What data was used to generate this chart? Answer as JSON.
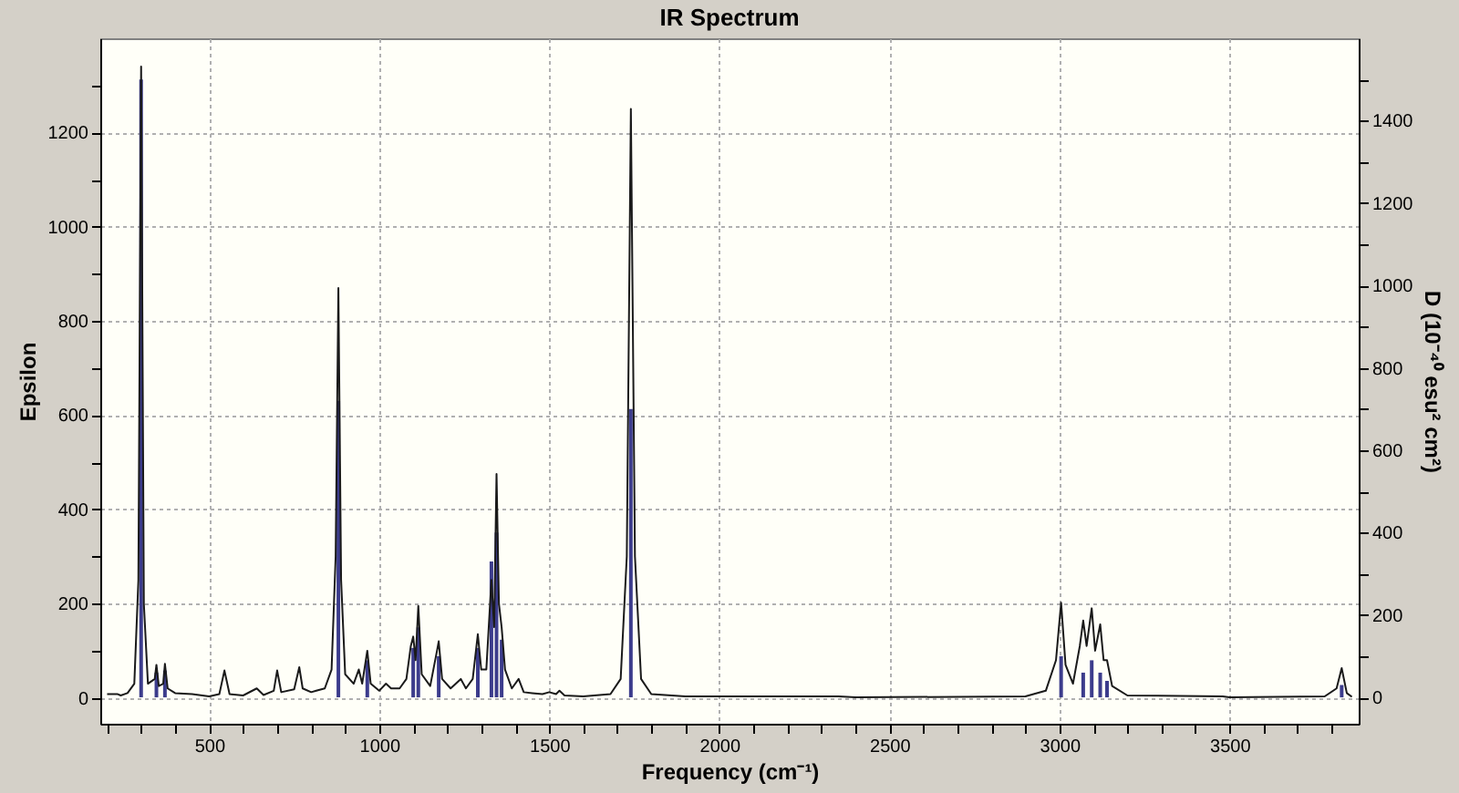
{
  "chart_data": {
    "type": "line",
    "title": "IR Spectrum",
    "xlabel": "Frequency (cm⁻¹)",
    "ylabel": "Epsilon",
    "y2label": "D (10⁻⁴⁰ esu² cm²)",
    "xlim": [
      180,
      3880
    ],
    "ylim": [
      -55,
      1400
    ],
    "y2lim": [
      -64,
      1600
    ],
    "xticks": [
      {
        "value": 200,
        "label": null
      },
      {
        "value": 300,
        "label": null
      },
      {
        "value": 400,
        "label": null
      },
      500,
      {
        "value": 600,
        "label": null
      },
      {
        "value": 700,
        "label": null
      },
      {
        "value": 800,
        "label": null
      },
      {
        "value": 900,
        "label": null
      },
      1000,
      {
        "value": 1100,
        "label": null
      },
      {
        "value": 1200,
        "label": null
      },
      {
        "value": 1300,
        "label": null
      },
      {
        "value": 1400,
        "label": null
      },
      1500,
      {
        "value": 1600,
        "label": null
      },
      {
        "value": 1700,
        "label": null
      },
      {
        "value": 1800,
        "label": null
      },
      {
        "value": 1900,
        "label": null
      },
      2000,
      {
        "value": 2100,
        "label": null
      },
      {
        "value": 2200,
        "label": null
      },
      {
        "value": 2300,
        "label": null
      },
      {
        "value": 2400,
        "label": null
      },
      2500,
      {
        "value": 2600,
        "label": null
      },
      {
        "value": 2700,
        "label": null
      },
      {
        "value": 2800,
        "label": null
      },
      {
        "value": 2900,
        "label": null
      },
      3000,
      {
        "value": 3100,
        "label": null
      },
      {
        "value": 3200,
        "label": null
      },
      {
        "value": 3300,
        "label": null
      },
      {
        "value": 3400,
        "label": null
      },
      3500,
      {
        "value": 3600,
        "label": null
      },
      {
        "value": 3700,
        "label": null
      },
      {
        "value": 3800,
        "label": null
      }
    ],
    "yticks": [
      0,
      {
        "value": 100,
        "label": null
      },
      200,
      {
        "value": 300,
        "label": null
      },
      400,
      {
        "value": 500,
        "label": null
      },
      600,
      {
        "value": 700,
        "label": null
      },
      800,
      {
        "value": 900,
        "label": null
      },
      1000,
      {
        "value": 1100,
        "label": null
      },
      1200,
      {
        "value": 1300,
        "label": null
      }
    ],
    "y2ticks": [
      0,
      {
        "value": 100,
        "label": null
      },
      200,
      {
        "value": 300,
        "label": null
      },
      400,
      {
        "value": 500,
        "label": null
      },
      600,
      {
        "value": 700,
        "label": null
      },
      800,
      {
        "value": 900,
        "label": null
      },
      1000,
      {
        "value": 1100,
        "label": null
      },
      1200,
      {
        "value": 1300,
        "label": null
      },
      1400,
      {
        "value": 1500,
        "label": null
      }
    ],
    "grid": true,
    "marker": "none",
    "line_style": "solid",
    "series": [
      {
        "color": "#1a1a1a",
        "x": [
          200,
          230,
          240,
          260,
          280,
          292,
          300,
          308,
          320,
          340,
          345,
          352,
          365,
          370,
          378,
          400,
          450,
          500,
          530,
          545,
          560,
          600,
          640,
          660,
          690,
          700,
          712,
          750,
          765,
          775,
          800,
          815,
          840,
          860,
          872,
          880,
          888,
          900,
          925,
          940,
          950,
          965,
          975,
          1000,
          1020,
          1035,
          1060,
          1080,
          1093,
          1100,
          1107,
          1115,
          1125,
          1150,
          1170,
          1175,
          1185,
          1210,
          1240,
          1255,
          1275,
          1290,
          1300,
          1315,
          1330,
          1338,
          1345,
          1352,
          1360,
          1370,
          1390,
          1410,
          1425,
          1450,
          1480,
          1500,
          1520,
          1530,
          1545,
          1600,
          1680,
          1710,
          1728,
          1740,
          1752,
          1770,
          1800,
          1900,
          2000,
          2350,
          2400,
          2900,
          2960,
          2990,
          3005,
          3018,
          3040,
          3060,
          3070,
          3080,
          3095,
          3105,
          3120,
          3130,
          3140,
          3155,
          3200,
          3480,
          3500,
          3780,
          3815,
          3830,
          3845,
          3860
        ],
        "values": [
          8,
          8,
          5,
          10,
          30,
          250,
          1340,
          200,
          30,
          40,
          70,
          25,
          30,
          72,
          20,
          10,
          8,
          3,
          8,
          58,
          8,
          5,
          20,
          6,
          15,
          58,
          12,
          18,
          65,
          20,
          12,
          15,
          20,
          60,
          300,
          870,
          250,
          50,
          30,
          60,
          30,
          100,
          30,
          15,
          30,
          20,
          20,
          40,
          110,
          130,
          80,
          195,
          50,
          25,
          100,
          120,
          40,
          20,
          40,
          20,
          40,
          135,
          60,
          60,
          250,
          150,
          475,
          200,
          150,
          60,
          20,
          40,
          12,
          10,
          8,
          12,
          8,
          15,
          5,
          3,
          8,
          40,
          300,
          1250,
          300,
          40,
          8,
          3,
          3,
          3,
          1,
          3,
          15,
          80,
          202,
          70,
          30,
          110,
          164,
          110,
          190,
          100,
          156,
          80,
          80,
          25,
          5,
          3,
          1,
          3,
          20,
          63,
          10,
          2
        ]
      },
      {
        "type": "bar",
        "axis": "y2",
        "color": "#3c3c8c",
        "x": [
          300,
          345,
          370,
          880,
          965,
          1100,
          1115,
          1175,
          1290,
          1330,
          1345,
          1360,
          1740,
          3005,
          3070,
          3095,
          3120,
          3140,
          3830
        ],
        "values": [
          1500,
          60,
          65,
          720,
          90,
          120,
          170,
          100,
          120,
          330,
          400,
          140,
          700,
          100,
          60,
          90,
          60,
          40,
          30
        ]
      }
    ]
  }
}
